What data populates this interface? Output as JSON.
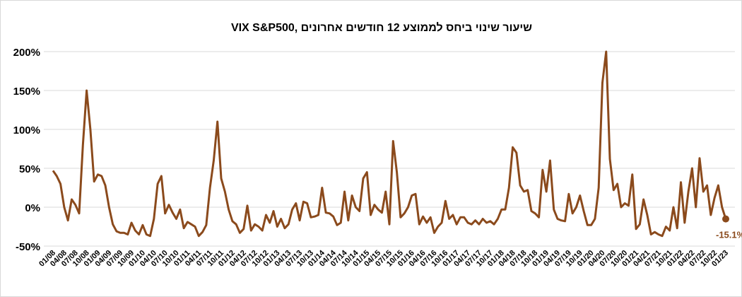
{
  "chart_data": {
    "type": "line",
    "title": "VIX S&P500, שיעור שינוי ביחס לממוצע 12 חודשים אחרונים",
    "categories": [
      "01/08",
      null,
      null,
      "04/08",
      null,
      null,
      "07/08",
      null,
      null,
      "10/08",
      null,
      null,
      "01/09",
      null,
      null,
      "04/09",
      null,
      null,
      "07/09",
      null,
      null,
      "10/09",
      null,
      null,
      "01/10",
      null,
      null,
      "04/10",
      null,
      null,
      "07/10",
      null,
      null,
      "10/10",
      null,
      null,
      "01/11",
      null,
      null,
      "04/11",
      null,
      null,
      "07/11",
      null,
      null,
      "10/11",
      null,
      null,
      "01/12",
      null,
      null,
      "04/12",
      null,
      null,
      "07/12",
      null,
      null,
      "10/12",
      null,
      null,
      "01/13",
      null,
      null,
      "04/13",
      null,
      null,
      "07/13",
      null,
      null,
      "10/13",
      null,
      null,
      "01/14",
      null,
      null,
      "04/14",
      null,
      null,
      "07/14",
      null,
      null,
      "10/14",
      null,
      null,
      "01/15",
      null,
      null,
      "04/15",
      null,
      null,
      "07/15",
      null,
      null,
      "10/15",
      null,
      null,
      "01/16",
      null,
      null,
      "04/16",
      null,
      null,
      "07/16",
      null,
      null,
      "10/16",
      null,
      null,
      "01/17",
      null,
      null,
      "04/17",
      null,
      null,
      "07/17",
      null,
      null,
      "10/17",
      null,
      null,
      "01/18",
      null,
      null,
      "04/18",
      null,
      null,
      "07/18",
      null,
      null,
      "10/18",
      null,
      null,
      "01/19",
      null,
      null,
      "04/19",
      null,
      null,
      "07/19",
      null,
      null,
      "10/19",
      null,
      null,
      "01/20",
      null,
      null,
      "04/20",
      null,
      null,
      "07/20",
      null,
      null,
      "10/20",
      null,
      null,
      "01/21",
      null,
      null,
      "04/21",
      null,
      null,
      "07/21",
      null,
      null,
      "10/21",
      null,
      null,
      "01/22",
      null,
      null,
      "04/22",
      null,
      null,
      "07/22",
      null,
      null,
      "10/22",
      null,
      null,
      "01/23"
    ],
    "series": [
      {
        "color": "#8b4a1c",
        "values": [
          47,
          40,
          30,
          0,
          -17,
          10,
          3,
          -8,
          80,
          150,
          100,
          33,
          42,
          40,
          28,
          0,
          -22,
          -31,
          -33,
          -33,
          -35,
          -20,
          -30,
          -35,
          -23,
          -35,
          -37,
          -15,
          30,
          40,
          -8,
          3,
          -7,
          -15,
          -3,
          -27,
          -19,
          -22,
          -25,
          -37,
          -32,
          -23,
          25,
          60,
          110,
          37,
          20,
          -3,
          -18,
          -22,
          -33,
          -28,
          2,
          -30,
          -22,
          -25,
          -30,
          -10,
          -20,
          -5,
          -25,
          -15,
          -27,
          -22,
          -3,
          5,
          -17,
          7,
          5,
          -13,
          -12,
          -10,
          25,
          -7,
          -8,
          -12,
          -23,
          -20,
          20,
          -17,
          15,
          0,
          -5,
          37,
          45,
          -10,
          3,
          -3,
          -7,
          20,
          -22,
          85,
          45,
          -13,
          -8,
          0,
          15,
          17,
          -22,
          -12,
          -20,
          -13,
          -33,
          -25,
          -20,
          8,
          -15,
          -10,
          -22,
          -13,
          -13,
          -20,
          -22,
          -17,
          -22,
          -15,
          -20,
          -18,
          -22,
          -15,
          -3,
          -3,
          25,
          77,
          70,
          28,
          20,
          22,
          -5,
          -8,
          -13,
          48,
          20,
          60,
          -3,
          -15,
          -17,
          -18,
          17,
          -8,
          0,
          15,
          -5,
          -23,
          -23,
          -15,
          25,
          160,
          200,
          62,
          22,
          30,
          0,
          5,
          2,
          42,
          -28,
          -22,
          10,
          -10,
          -35,
          -32,
          -35,
          -37,
          -25,
          -30,
          0,
          -27,
          32,
          -20,
          20,
          50,
          0,
          63,
          20,
          28,
          -10,
          12,
          28,
          0,
          -15.1
        ],
        "value_labels": [
          null,
          null,
          null,
          null,
          null,
          null,
          null,
          null,
          null,
          null,
          null,
          null,
          null,
          null,
          null,
          null,
          null,
          null,
          null,
          null,
          null,
          null,
          null,
          null,
          null,
          null,
          null,
          null,
          null,
          null,
          null,
          null,
          null,
          null,
          null,
          null,
          null,
          null,
          null,
          null,
          null,
          null,
          null,
          null,
          null,
          null,
          null,
          null,
          null,
          null,
          null,
          null,
          null,
          null,
          null,
          null,
          null,
          null,
          null,
          null,
          null,
          null,
          null,
          null,
          null,
          null,
          null,
          null,
          null,
          null,
          null,
          null,
          null,
          null,
          null,
          null,
          null,
          null,
          null,
          null,
          null,
          null,
          null,
          null,
          null,
          null,
          null,
          null,
          null,
          null,
          null,
          null,
          null,
          null,
          null,
          null,
          null,
          null,
          null,
          null,
          null,
          null,
          null,
          null,
          null,
          null,
          null,
          null,
          null,
          null,
          null,
          null,
          null,
          null,
          null,
          null,
          null,
          null,
          null,
          null,
          null,
          null,
          null,
          null,
          null,
          null,
          null,
          null,
          null,
          null,
          null,
          null,
          null,
          null,
          null,
          null,
          null,
          null,
          null,
          null,
          null,
          null,
          null,
          null,
          null,
          null,
          null,
          null,
          null,
          null,
          null,
          null,
          null,
          null,
          null,
          null,
          null,
          null,
          null,
          null,
          null,
          null,
          null,
          null,
          null,
          null,
          null,
          null,
          null,
          null,
          null,
          null,
          null,
          null,
          null,
          null,
          null,
          null,
          null,
          null,
          "-15.1%"
        ]
      }
    ],
    "ylim": [
      -50,
      200
    ],
    "yticks": [
      {
        "value": -50,
        "label": "-50%"
      },
      {
        "value": 0,
        "label": "0%"
      },
      {
        "value": 50,
        "label": "50%"
      },
      {
        "value": 100,
        "label": "100%"
      },
      {
        "value": 150,
        "label": "150%"
      },
      {
        "value": 200,
        "label": "200%"
      }
    ],
    "grid": true
  }
}
